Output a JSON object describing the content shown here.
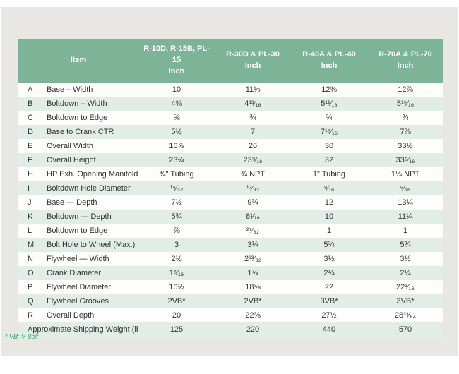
{
  "table": {
    "header": {
      "item_label": "Item",
      "columns": [
        {
          "model": "R-10D, R-15B, PL-15",
          "unit": "Inch"
        },
        {
          "model": "R-30D & PL-30",
          "unit": "Inch"
        },
        {
          "model": "R-40A & PL-40",
          "unit": "Inch"
        },
        {
          "model": "R-70A & PL-70",
          "unit": "Inch"
        }
      ]
    },
    "rows": [
      {
        "letter": "A",
        "item": "Base – Width",
        "values": [
          "10",
          "11⅛",
          "12⅜",
          "12⅞"
        ]
      },
      {
        "letter": "B",
        "item": "Boltdown – Width",
        "values": [
          "4⅜",
          "4¹³⁄₁₆",
          "5¹¹⁄₁₆",
          "5¹⁵⁄₁₆"
        ]
      },
      {
        "letter": "C",
        "item": "Boltdown to Edge",
        "values": [
          "⅝",
          "¾",
          "¾",
          "¾"
        ]
      },
      {
        "letter": "D",
        "item": "Base to Crank CTR",
        "values": [
          "5½",
          "7",
          "7¹⁵⁄₁₆",
          "7⅞"
        ]
      },
      {
        "letter": "E",
        "item": "Overall Width",
        "values": [
          "16⅞",
          "26",
          "30",
          "33½"
        ]
      },
      {
        "letter": "F",
        "item": "Overall Height",
        "values": [
          "23¼",
          "23⁹⁄₁₆",
          "32",
          "33⁹⁄₁₆"
        ]
      },
      {
        "letter": "H",
        "item": "HP Exh. Opening Manifold",
        "values": [
          "¾\" Tubing",
          "¾ NPT",
          "1\" Tubing",
          "1¼ NPT"
        ]
      },
      {
        "letter": "I",
        "item": "Boltdown Hole Diameter",
        "values": [
          "¹⁵⁄₃₂",
          "¹⁷⁄₃₂",
          "⁹⁄₁₆",
          "⁹⁄₁₆"
        ]
      },
      {
        "letter": "J",
        "item": "Base — Depth",
        "values": [
          "7½",
          "9¾",
          "12",
          "13¼"
        ]
      },
      {
        "letter": "K",
        "item": "Boltdown — Depth",
        "values": [
          "5¾",
          "8¹⁄₁₆",
          "10",
          "11¼"
        ]
      },
      {
        "letter": "L",
        "item": "Boltdown to Edge",
        "values": [
          "⅞",
          "²⁷⁄₃₂",
          "1",
          "1"
        ]
      },
      {
        "letter": "M",
        "item": "Bolt Hole to Wheel (Max.)",
        "values": [
          "3",
          "3¼",
          "5¾",
          "5¾"
        ]
      },
      {
        "letter": "N",
        "item": "Flywheel — Width",
        "values": [
          "2½",
          "2²³⁄₃₂",
          "3½",
          "3½"
        ]
      },
      {
        "letter": "O",
        "item": "Crank Diameter",
        "values": [
          "1⁵⁄₁₆",
          "1¾",
          "2¼",
          "2¼"
        ]
      },
      {
        "letter": "P",
        "item": "Flywheel Diameter",
        "values": [
          "16½",
          "18⅜",
          "22",
          "22³⁄₁₆"
        ]
      },
      {
        "letter": "Q",
        "item": "Flywheel Grooves",
        "values": [
          "2VB*",
          "2VB*",
          "3VB*",
          "3VB*"
        ]
      },
      {
        "letter": "R",
        "item": "Overall Depth",
        "values": [
          "20",
          "22⅜",
          "27½",
          "28³³⁄₆₄"
        ]
      }
    ],
    "footer_row": {
      "item": "Approximate Shipping Weight (lbs.)",
      "values": [
        "125",
        "220",
        "440",
        "570"
      ]
    }
  },
  "footnote": "* VB: V Belt",
  "colors": {
    "header_green": "#7db498",
    "stripe_green": "#e2ede7",
    "panel_gray": "#e9e7e3",
    "footnote_green": "#41a06a"
  }
}
